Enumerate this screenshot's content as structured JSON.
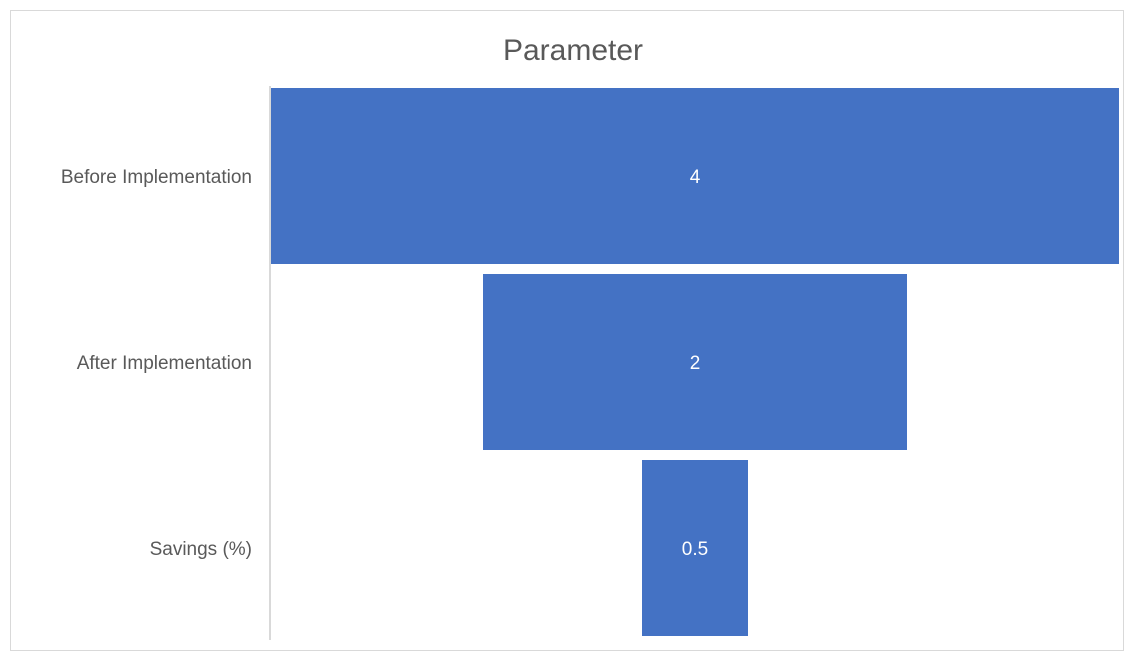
{
  "chart_data": {
    "type": "funnel",
    "title": "Parameter",
    "categories": [
      "Before Implementation",
      "After Implementation",
      "Savings (%)"
    ],
    "values": [
      4,
      2,
      0.5
    ],
    "value_labels": [
      "4",
      "2",
      "0.5"
    ],
    "bar_color": "#4472c4",
    "axis_color": "#d9d9d9",
    "text_color": "#595959",
    "data_label_color": "#ffffff",
    "legend": "none",
    "grid": false
  }
}
